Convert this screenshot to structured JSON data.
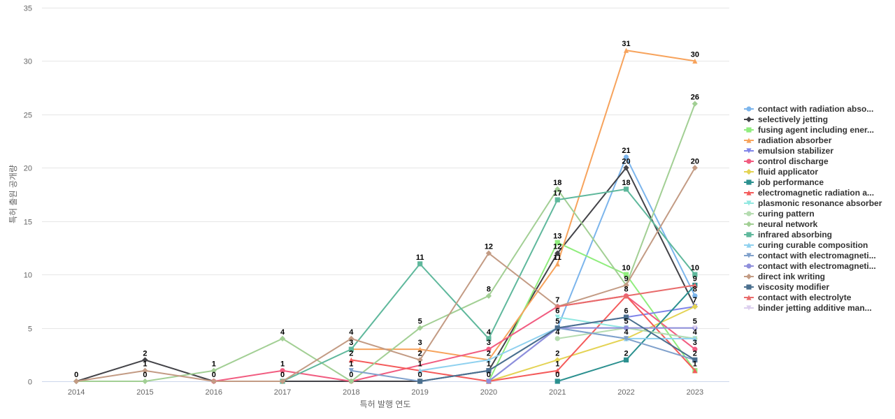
{
  "chart_data": {
    "type": "line",
    "xlabel": "특허 발행 연도",
    "ylabel": "특허 출원 공개량",
    "ylim": [
      0,
      35
    ],
    "yticks": [
      0,
      5,
      10,
      15,
      20,
      25,
      30,
      35
    ],
    "x": [
      "2014",
      "2015",
      "2016",
      "2017",
      "2018",
      "2019",
      "2020",
      "2021",
      "2022",
      "2023"
    ],
    "grid": "horizontal",
    "legend_position": "right",
    "series": [
      {
        "name": "contact with radiation abso...",
        "color": "#7cb5ec",
        "marker": "circle",
        "values": [
          null,
          null,
          null,
          null,
          null,
          null,
          0,
          5,
          21,
          8
        ]
      },
      {
        "name": "selectively jetting",
        "color": "#434348",
        "marker": "diamond",
        "values": [
          0,
          2,
          0,
          null,
          null,
          0,
          1,
          12,
          20,
          7
        ]
      },
      {
        "name": "fusing agent including ener...",
        "color": "#90ed7d",
        "marker": "square",
        "values": [
          null,
          null,
          null,
          null,
          null,
          null,
          0,
          13,
          10,
          1
        ]
      },
      {
        "name": "radiation absorber",
        "color": "#f7a35c",
        "marker": "triangle",
        "values": [
          null,
          null,
          null,
          null,
          3,
          3,
          2,
          11,
          31,
          30
        ]
      },
      {
        "name": "emulsion stabilizer",
        "color": "#8085e9",
        "marker": "triangle-down",
        "values": [
          null,
          null,
          null,
          null,
          null,
          null,
          0,
          5,
          6,
          7
        ]
      },
      {
        "name": "control discharge",
        "color": "#f15c80",
        "marker": "circle",
        "values": [
          null,
          null,
          0,
          1,
          0,
          null,
          3,
          7,
          8,
          3
        ]
      },
      {
        "name": "fluid applicator",
        "color": "#e4d354",
        "marker": "diamond",
        "values": [
          null,
          null,
          null,
          null,
          null,
          null,
          0,
          2,
          4,
          7
        ]
      },
      {
        "name": "job performance",
        "color": "#2b908f",
        "marker": "square",
        "values": [
          null,
          null,
          null,
          null,
          null,
          null,
          null,
          0,
          2,
          9
        ]
      },
      {
        "name": "electromagnetic radiation a...",
        "color": "#f45b5b",
        "marker": "triangle",
        "values": [
          null,
          null,
          null,
          null,
          2,
          1,
          0,
          1,
          8,
          1
        ]
      },
      {
        "name": "plasmonic resonance absorber",
        "color": "#91e8e1",
        "marker": "triangle-down",
        "values": [
          null,
          null,
          null,
          null,
          null,
          null,
          null,
          6,
          5,
          4
        ]
      },
      {
        "name": "curing pattern",
        "color": "#b5dcb0",
        "marker": "circle",
        "values": [
          null,
          null,
          null,
          null,
          null,
          null,
          null,
          4,
          5,
          4
        ]
      },
      {
        "name": "neural network",
        "color": "#a2cf94",
        "marker": "diamond",
        "values": [
          0,
          0,
          1,
          4,
          0,
          5,
          8,
          18,
          9,
          26
        ]
      },
      {
        "name": "infrared absorbing",
        "color": "#5fb89c",
        "marker": "square",
        "values": [
          null,
          null,
          null,
          0,
          3,
          11,
          4,
          17,
          18,
          10
        ]
      },
      {
        "name": "curing curable composition",
        "color": "#8fd1ef",
        "marker": "triangle",
        "values": [
          null,
          null,
          null,
          null,
          null,
          1,
          2,
          5,
          4,
          4
        ]
      },
      {
        "name": "contact with electromagneti...",
        "color": "#7fa0cb",
        "marker": "triangle-down",
        "values": [
          null,
          null,
          null,
          null,
          1,
          0,
          1,
          5,
          4,
          2
        ]
      },
      {
        "name": "contact with electromagneti...",
        "color": "#8f8fdb",
        "marker": "circle",
        "values": [
          null,
          null,
          null,
          null,
          null,
          null,
          0,
          5,
          5,
          5
        ]
      },
      {
        "name": "direct ink writing",
        "color": "#c39b84",
        "marker": "diamond",
        "values": [
          0,
          1,
          0,
          0,
          4,
          2,
          12,
          7,
          9,
          20
        ]
      },
      {
        "name": "viscosity modifier",
        "color": "#4a6f8e",
        "marker": "square",
        "values": [
          null,
          null,
          null,
          null,
          null,
          0,
          1,
          5,
          6,
          2
        ]
      },
      {
        "name": "contact with electrolyte",
        "color": "#e86b6b",
        "marker": "triangle",
        "values": [
          null,
          null,
          null,
          null,
          null,
          null,
          null,
          7,
          8,
          9
        ]
      },
      {
        "name": "binder jetting additive man...",
        "color": "#dccfee",
        "marker": "triangle-down",
        "values": [
          null,
          null,
          null,
          null,
          null,
          null,
          null,
          null,
          null,
          5
        ]
      }
    ],
    "data_labels": [
      {
        "x": "2014",
        "value": 0
      },
      {
        "x": "2015",
        "value": 2
      },
      {
        "x": "2015",
        "value": 1
      },
      {
        "x": "2015",
        "value": 0
      },
      {
        "x": "2016",
        "value": 1
      },
      {
        "x": "2016",
        "value": 0
      },
      {
        "x": "2017",
        "value": 4
      },
      {
        "x": "2017",
        "value": 1
      },
      {
        "x": "2017",
        "value": 0
      },
      {
        "x": "2018",
        "value": 4
      },
      {
        "x": "2018",
        "value": 3
      },
      {
        "x": "2018",
        "value": 2
      },
      {
        "x": "2018",
        "value": 1
      },
      {
        "x": "2018",
        "value": 0
      },
      {
        "x": "2019",
        "value": 11
      },
      {
        "x": "2019",
        "value": 5
      },
      {
        "x": "2019",
        "value": 3
      },
      {
        "x": "2019",
        "value": 2
      },
      {
        "x": "2019",
        "value": 1
      },
      {
        "x": "2019",
        "value": 0
      },
      {
        "x": "2020",
        "value": 12
      },
      {
        "x": "2020",
        "value": 8
      },
      {
        "x": "2020",
        "value": 4
      },
      {
        "x": "2020",
        "value": 3
      },
      {
        "x": "2020",
        "value": 2
      },
      {
        "x": "2020",
        "value": 1
      },
      {
        "x": "2020",
        "value": 0
      },
      {
        "x": "2021",
        "value": 18
      },
      {
        "x": "2021",
        "value": 17
      },
      {
        "x": "2021",
        "value": 13
      },
      {
        "x": "2021",
        "value": 12
      },
      {
        "x": "2021",
        "value": 11
      },
      {
        "x": "2021",
        "value": 7
      },
      {
        "x": "2021",
        "value": 6
      },
      {
        "x": "2021",
        "value": 5
      },
      {
        "x": "2021",
        "value": 4
      },
      {
        "x": "2021",
        "value": 2
      },
      {
        "x": "2021",
        "value": 1
      },
      {
        "x": "2021",
        "value": 0
      },
      {
        "x": "2022",
        "value": 31
      },
      {
        "x": "2022",
        "value": 21
      },
      {
        "x": "2022",
        "value": 20
      },
      {
        "x": "2022",
        "value": 18
      },
      {
        "x": "2022",
        "value": 10
      },
      {
        "x": "2022",
        "value": 9
      },
      {
        "x": "2022",
        "value": 8
      },
      {
        "x": "2022",
        "value": 6
      },
      {
        "x": "2022",
        "value": 5
      },
      {
        "x": "2022",
        "value": 4
      },
      {
        "x": "2022",
        "value": 2
      },
      {
        "x": "2023",
        "value": 30
      },
      {
        "x": "2023",
        "value": 26
      },
      {
        "x": "2023",
        "value": 20
      },
      {
        "x": "2023",
        "value": 10
      },
      {
        "x": "2023",
        "value": 9
      },
      {
        "x": "2023",
        "value": 8
      },
      {
        "x": "2023",
        "value": 7
      },
      {
        "x": "2023",
        "value": 5
      },
      {
        "x": "2023",
        "value": 4
      },
      {
        "x": "2023",
        "value": 3
      },
      {
        "x": "2023",
        "value": 2
      },
      {
        "x": "2023",
        "value": 1
      }
    ]
  }
}
